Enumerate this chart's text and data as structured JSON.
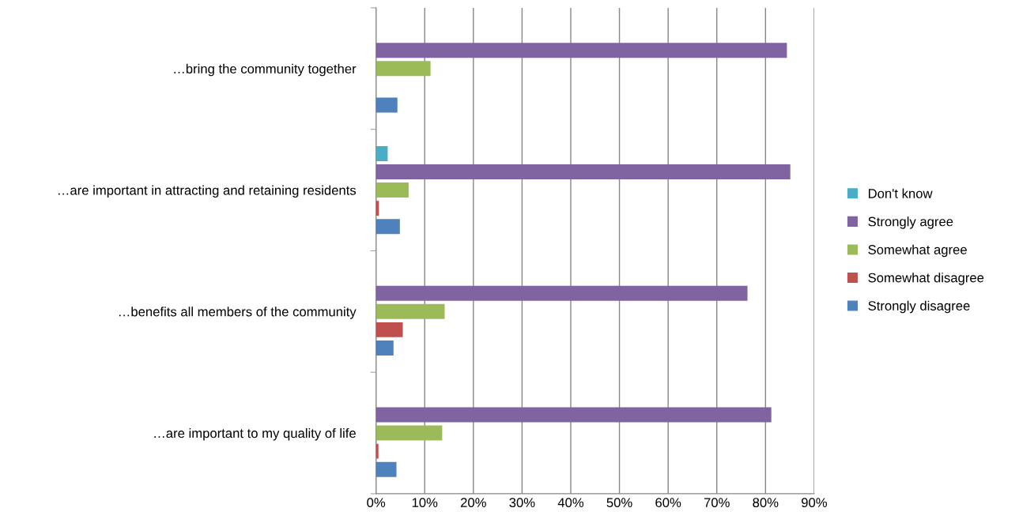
{
  "chart_data": {
    "type": "bar",
    "orientation": "horizontal",
    "categories": [
      "…bring the community together",
      "…are important in attracting and retaining residents",
      "…benefits all members of the community",
      "…are important to my quality of life"
    ],
    "series": [
      {
        "name": "Strongly disagree",
        "color": "#4f81bd",
        "values": [
          4.4,
          4.9,
          3.6,
          4.2
        ]
      },
      {
        "name": "Somewhat disagree",
        "color": "#c0504d",
        "values": [
          0,
          0.6,
          5.5,
          0.5
        ]
      },
      {
        "name": "Somewhat agree",
        "color": "#9bbb59",
        "values": [
          11.2,
          6.7,
          14.1,
          13.6
        ]
      },
      {
        "name": "Strongly agree",
        "color": "#8064a2",
        "values": [
          84.4,
          85.1,
          76.3,
          81.2
        ]
      },
      {
        "name": "Don't know",
        "color": "#4bacc6",
        "values": [
          0,
          2.4,
          0,
          0
        ]
      }
    ],
    "xlim": [
      0,
      90
    ],
    "xticks": [
      {
        "value": 0,
        "label": "0%"
      },
      {
        "value": 10,
        "label": "10%"
      },
      {
        "value": 20,
        "label": "20%"
      },
      {
        "value": 30,
        "label": "30%"
      },
      {
        "value": 40,
        "label": "40%"
      },
      {
        "value": 50,
        "label": "50%"
      },
      {
        "value": 60,
        "label": "60%"
      },
      {
        "value": 70,
        "label": "70%"
      },
      {
        "value": 80,
        "label": "80%"
      },
      {
        "value": 90,
        "label": "90%"
      }
    ],
    "grid": "x",
    "legend": "right"
  }
}
